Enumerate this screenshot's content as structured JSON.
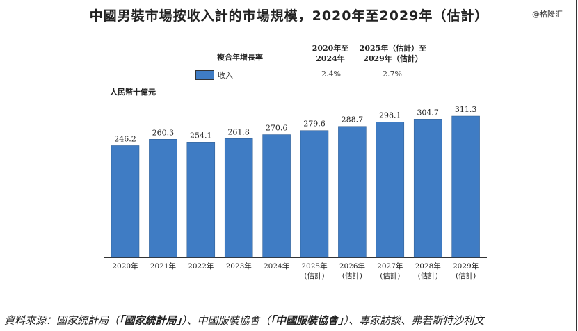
{
  "watermark": "@格隆汇",
  "legend": {
    "header_label": "複合年增長率",
    "col1_header": [
      "2020年至",
      "2024年"
    ],
    "col2_header": [
      "2025年（估計）至",
      "2029年（估計）"
    ],
    "series_label": "收入",
    "col1_value": "2.4%",
    "col2_value": "2.7%"
  },
  "source": {
    "prefix": "資料來源：國家統計局（",
    "bold1": "「國家統計局」",
    "mid": "）、中國服裝協會（",
    "bold2": "「中國服裝協會」",
    "suffix": "）、專家訪談、弗若斯特沙利文"
  },
  "chart_data": {
    "type": "bar",
    "title": "中國男裝市場按收入計的市場規模，2020年至2029年（估計）",
    "ylabel": "人民幣十億元",
    "xlabel": "",
    "categories": [
      "2020年",
      "2021年",
      "2022年",
      "2023年",
      "2024年",
      "2025年\n(估計)",
      "2026年\n(估計)",
      "2027年\n(估計)",
      "2028年\n(估計)",
      "2029年\n(估計)"
    ],
    "series": [
      {
        "name": "收入",
        "values": [
          246.2,
          260.3,
          254.1,
          261.8,
          270.6,
          279.6,
          288.7,
          298.1,
          304.7,
          311.3
        ],
        "color": "#3f7cc4"
      }
    ],
    "ylim": [
      0,
      311.3
    ],
    "grid": false,
    "legend": "top"
  }
}
